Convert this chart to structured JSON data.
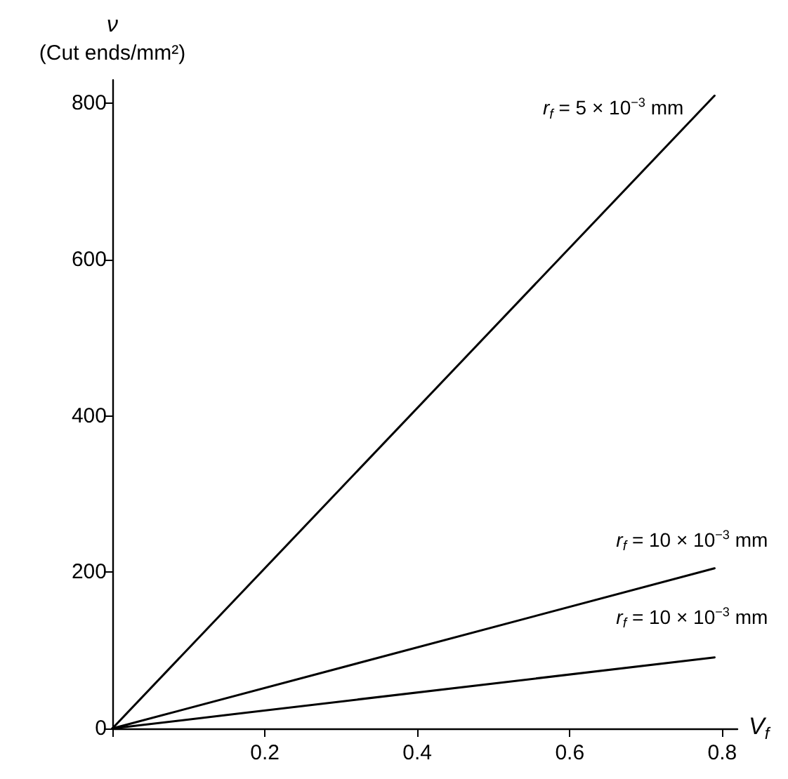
{
  "chart_data": {
    "type": "line",
    "xlabel": "V$_{f}$",
    "ylabel": "ν\n(Cut ends/mm²)",
    "x": [
      0,
      0.79
    ],
    "series": [
      {
        "color": "#000000",
        "values": [
          0,
          810
        ]
      },
      {
        "color": "#000000",
        "values": [
          0,
          205
        ]
      },
      {
        "color": "#000000",
        "values": [
          0,
          91
        ]
      }
    ],
    "xlim": [
      0,
      0.82
    ],
    "xticks": [
      {
        "value": 0,
        "label": null
      },
      0.2,
      0.4,
      0.6,
      0.8
    ],
    "ylim": [
      0,
      830
    ],
    "yticks": [
      0,
      200,
      400,
      600,
      800
    ],
    "grid": false,
    "marker": "none",
    "line_style": "solid",
    "annotations": [
      "r$_{f}$ = 5 × 10$^{−3}$ mm",
      "r$_{f}$ = 10 × 10$^{−3}$ mm",
      "r$_{f}$ = 10 × 10$^{−3}$ mm"
    ]
  }
}
